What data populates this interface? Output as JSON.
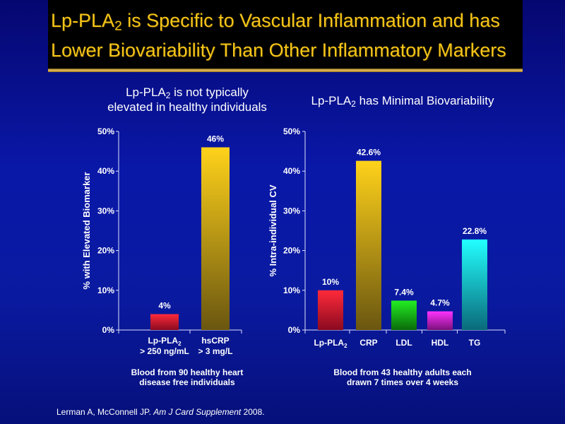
{
  "slide": {
    "title_line1_pre": "Lp-PLA",
    "title_line1_sub": "2",
    "title_line1_post": " is Specific to Vascular Inflammation and has",
    "title_line2": "Lower Biovariability Than Other Inflammatory Markers",
    "citation_authors": "Lerman A, McConnell JP. ",
    "citation_journal": "Am J Card Supplement",
    "citation_year": " 2008."
  },
  "left_panel": {
    "title_pre": "Lp-PLA",
    "title_sub": "2",
    "title_post": " is not typically",
    "title_line2": "elevated in healthy individuals",
    "footnote_line1": "Blood from 90 healthy heart",
    "footnote_line2": "disease free individuals"
  },
  "right_panel": {
    "title_pre": "Lp-PLA",
    "title_sub": "2",
    "title_post": " has Minimal Biovariability",
    "footnote_line1": "Blood from 43 healthy adults each",
    "footnote_line2": "drawn 7 times over 4 weeks"
  },
  "chart_data": [
    {
      "type": "bar",
      "ylabel": "% with Elevated Biomarker",
      "ylim": [
        0,
        50
      ],
      "yticks": [
        "0%",
        "10%",
        "20%",
        "30%",
        "40%",
        "50%"
      ],
      "categories": [
        {
          "line1": "Lp-PLA",
          "sub": "2",
          "line2": "> 250 ng/mL"
        },
        {
          "line1": "hsCRP",
          "sub": "",
          "line2": "> 3 mg/L"
        }
      ],
      "values": [
        4,
        46
      ],
      "data_labels": [
        "4%",
        "46%"
      ],
      "colors": [
        [
          "#ff2a3a",
          "#8a0a20"
        ],
        [
          "#ffd21a",
          "#6a5610"
        ]
      ]
    },
    {
      "type": "bar",
      "ylabel": "% Intra-individual CV",
      "ylim": [
        0,
        50
      ],
      "yticks": [
        "0%",
        "10%",
        "20%",
        "30%",
        "40%",
        "50%"
      ],
      "categories": [
        {
          "line1": "Lp-PLA",
          "sub": "2",
          "line2": ""
        },
        {
          "line1": "CRP",
          "sub": "",
          "line2": ""
        },
        {
          "line1": "LDL",
          "sub": "",
          "line2": ""
        },
        {
          "line1": "HDL",
          "sub": "",
          "line2": ""
        },
        {
          "line1": "TG",
          "sub": "",
          "line2": ""
        }
      ],
      "values": [
        10,
        42.6,
        7.4,
        4.7,
        22.8
      ],
      "data_labels": [
        "10%",
        "42.6%",
        "7.4%",
        "4.7%",
        "22.8%"
      ],
      "colors": [
        [
          "#ff2a3a",
          "#8a0a20"
        ],
        [
          "#ffd21a",
          "#6a5610"
        ],
        [
          "#22ee22",
          "#0a6a0a"
        ],
        [
          "#ff33ff",
          "#7a107a"
        ],
        [
          "#22ffff",
          "#0a6a7a"
        ]
      ]
    }
  ]
}
